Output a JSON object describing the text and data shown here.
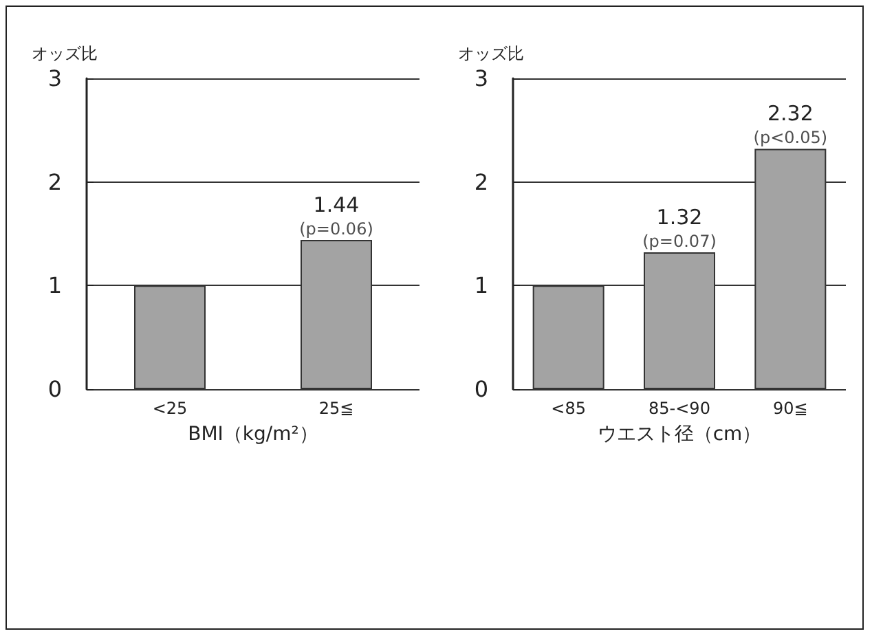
{
  "chart_data": [
    {
      "type": "bar",
      "ylabel": "オッズ比",
      "xlabel": "BMI（kg/m²）",
      "categories": [
        "<25",
        "25≦"
      ],
      "values": [
        1,
        1.44
      ],
      "color": "#a3a3a3",
      "ylim": [
        0,
        3
      ],
      "yticks": [
        0,
        1,
        2,
        3
      ],
      "grid": "y",
      "value_labels": [
        null,
        "1.44"
      ],
      "annotations": [
        {
          "text": "(p=0.06)",
          "x": "25≦",
          "y": 1.44
        }
      ]
    },
    {
      "type": "bar",
      "ylabel": "オッズ比",
      "xlabel": "ウエスト径（cm）",
      "categories": [
        "<85",
        "85-<90",
        "90≦"
      ],
      "values": [
        1,
        1.32,
        2.32
      ],
      "color": "#a3a3a3",
      "ylim": [
        0,
        3
      ],
      "yticks": [
        0,
        1,
        2,
        3
      ],
      "grid": "y",
      "value_labels": [
        null,
        "1.32",
        "2.32"
      ],
      "annotations": [
        {
          "text": "(p=0.07)",
          "x": "85-<90",
          "y": 1.32
        },
        {
          "text": "(p<0.05)",
          "x": "90≦",
          "y": 2.32
        }
      ]
    }
  ]
}
